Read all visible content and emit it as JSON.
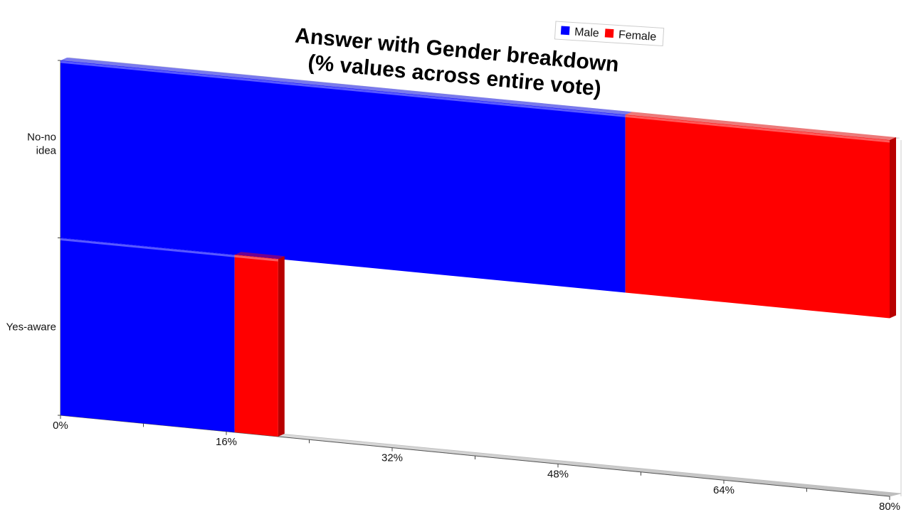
{
  "chart_data": {
    "type": "bar",
    "orientation": "horizontal",
    "stacked": true,
    "title": "Answer with Gender breakdown\n(% values across entire vote)",
    "categories": [
      "No-no idea",
      "Yes-aware"
    ],
    "category_label_lines": [
      [
        "No-no",
        "idea"
      ],
      [
        "Yes-aware"
      ]
    ],
    "series": [
      {
        "name": "Male",
        "color": "#0000ff",
        "values": [
          54.5,
          16.8
        ]
      },
      {
        "name": "Female",
        "color": "#ff0000",
        "values": [
          25.5,
          4.2
        ]
      }
    ],
    "xlim": [
      0,
      80
    ],
    "x_ticks": [
      "0%",
      "16%",
      "32%",
      "48%",
      "64%",
      "80%"
    ],
    "xlabel": "",
    "ylabel": "",
    "grid": false,
    "legend_position": "top-right",
    "style": "3d-perspective"
  }
}
